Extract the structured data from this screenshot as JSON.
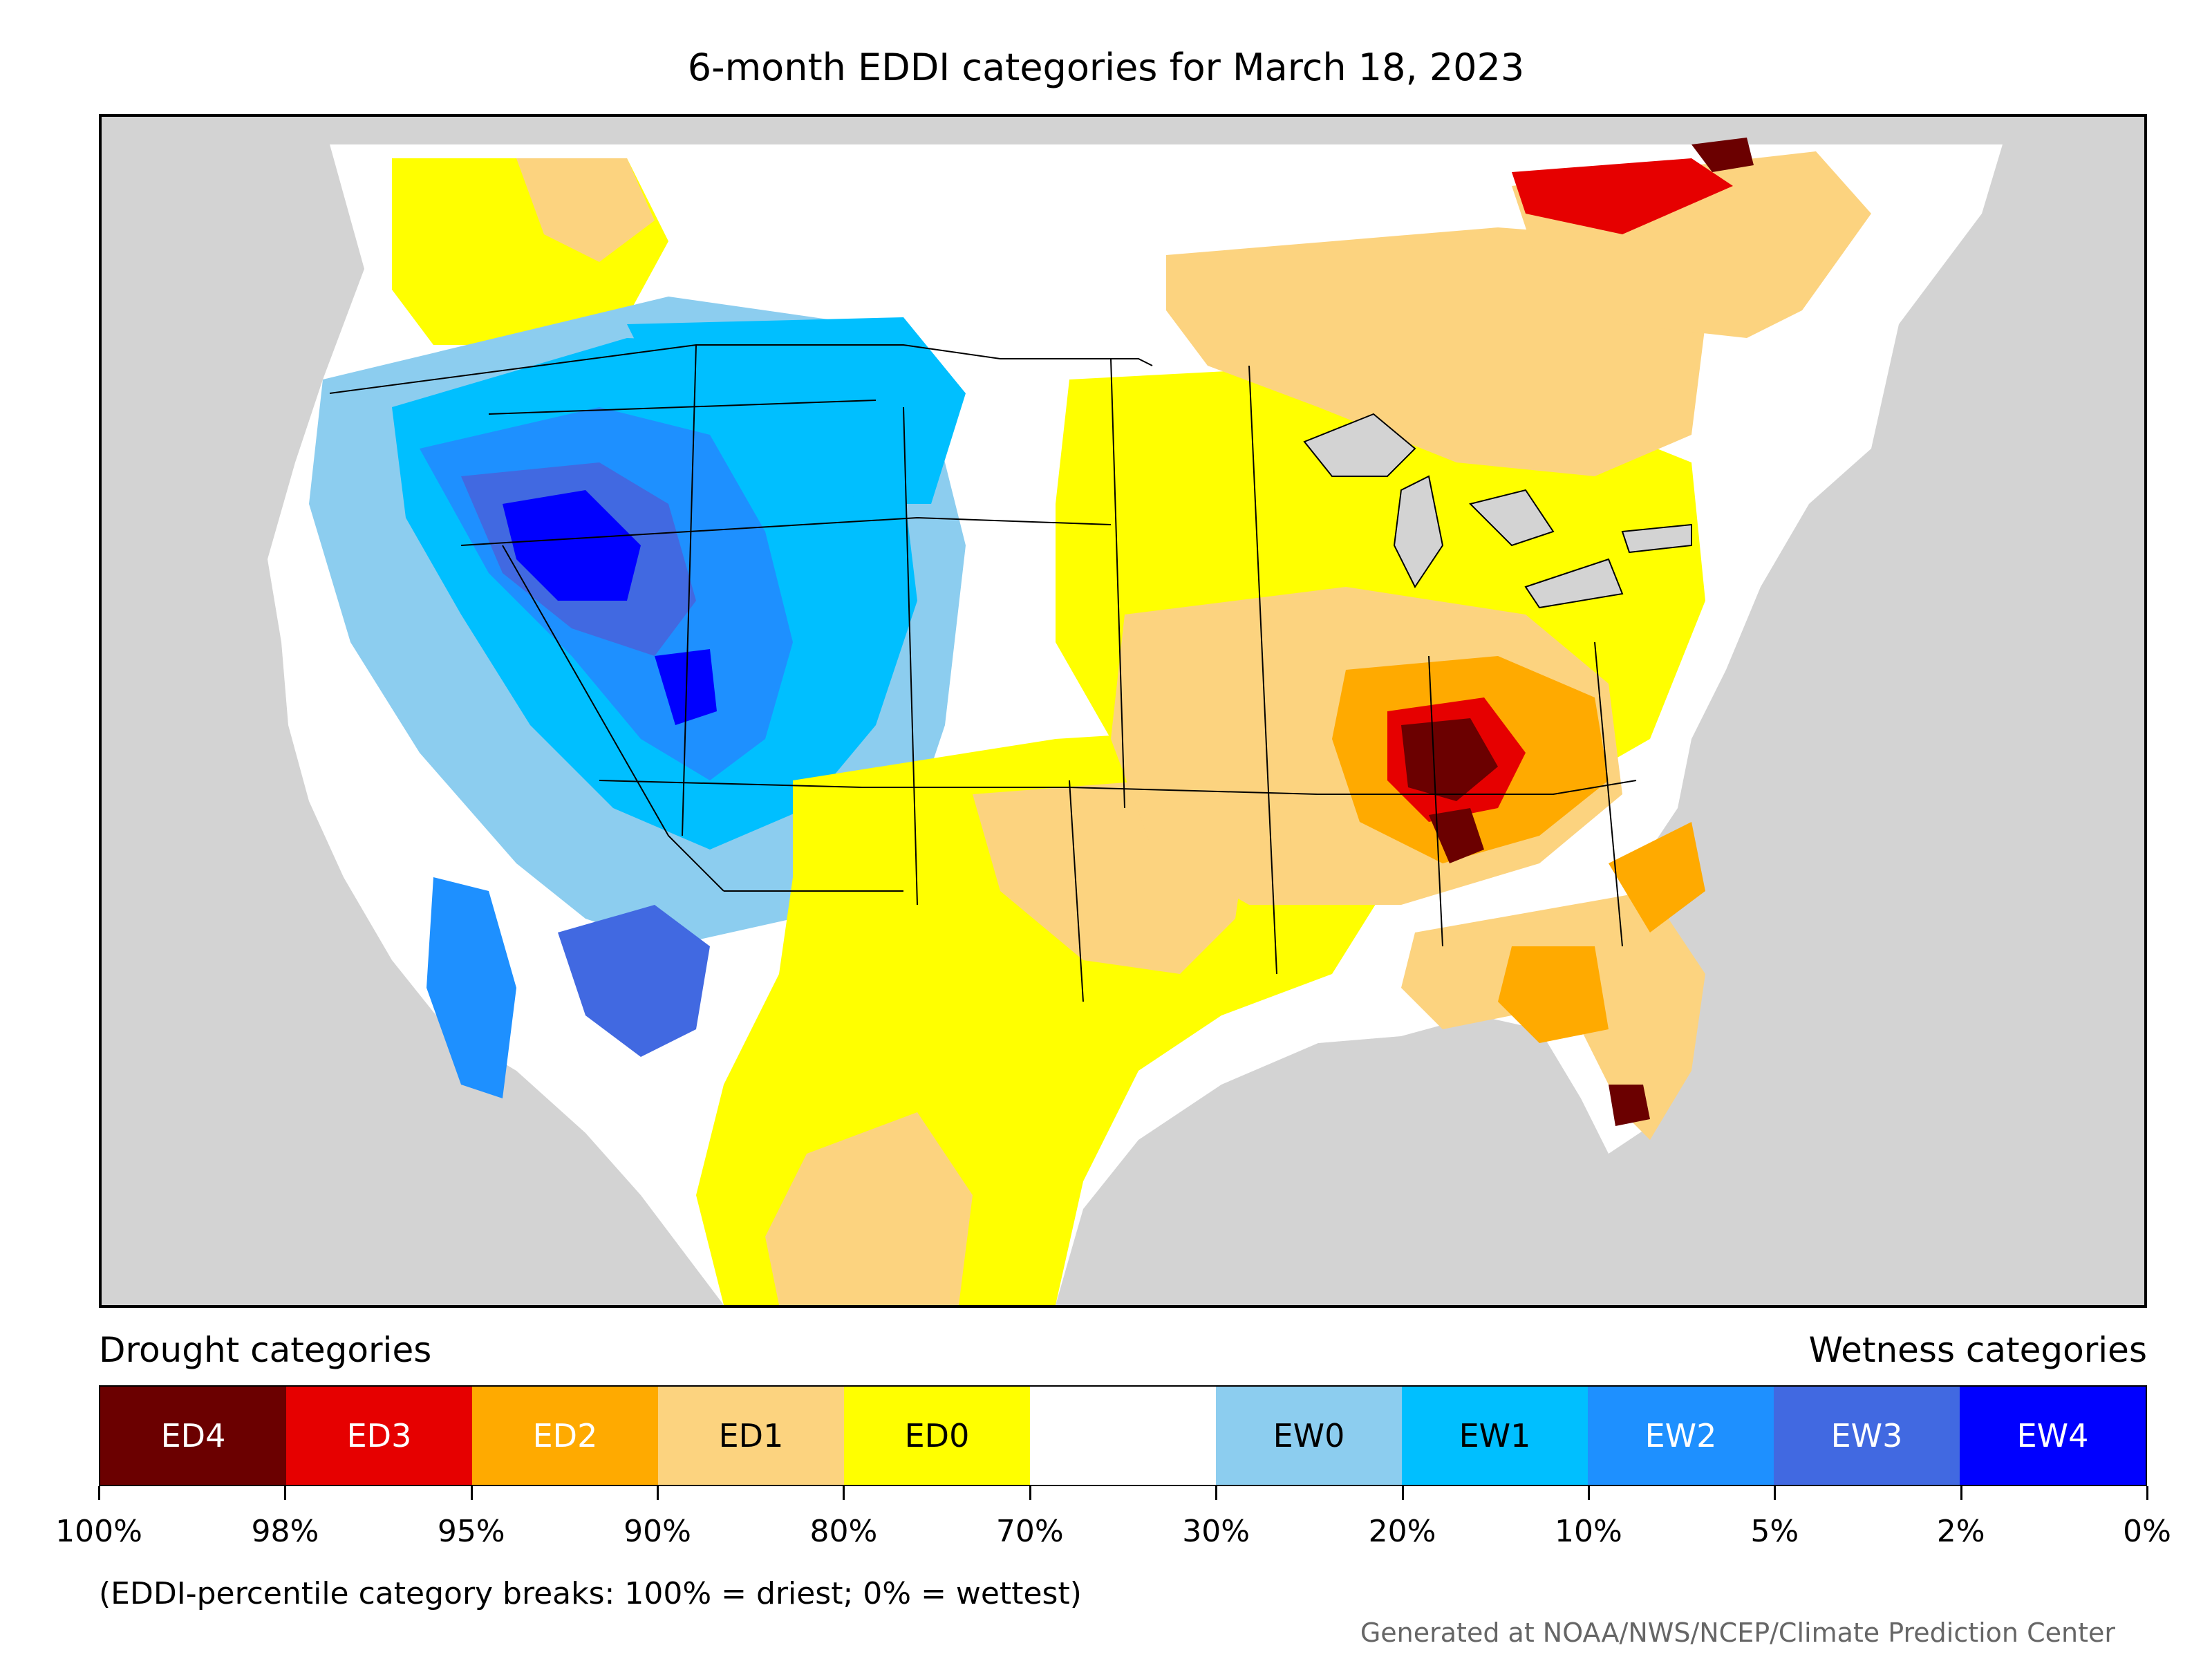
{
  "title": "6-month EDDI categories for March 18, 2023",
  "legend": {
    "drought_heading": "Drought categories",
    "wetness_heading": "Wetness categories",
    "categories": [
      {
        "label": "ED4",
        "color": "#6b0000",
        "text_color": "#ffffff"
      },
      {
        "label": "ED3",
        "color": "#e60000",
        "text_color": "#ffffff"
      },
      {
        "label": "ED2",
        "color": "#ffaa00",
        "text_color": "#ffffff"
      },
      {
        "label": "ED1",
        "color": "#fcd37f",
        "text_color": "#000000"
      },
      {
        "label": "ED0",
        "color": "#ffff00",
        "text_color": "#000000"
      },
      {
        "label": "",
        "color": "#ffffff",
        "text_color": "#000000"
      },
      {
        "label": "EW0",
        "color": "#8ccdef",
        "text_color": "#000000"
      },
      {
        "label": "EW1",
        "color": "#00bfff",
        "text_color": "#000000"
      },
      {
        "label": "EW2",
        "color": "#1e90ff",
        "text_color": "#ffffff"
      },
      {
        "label": "EW3",
        "color": "#4169e1",
        "text_color": "#ffffff"
      },
      {
        "label": "EW4",
        "color": "#0000ff",
        "text_color": "#ffffff"
      }
    ],
    "breaks": [
      "100%",
      "98%",
      "95%",
      "90%",
      "80%",
      "70%",
      "30%",
      "20%",
      "10%",
      "5%",
      "2%",
      "0%"
    ]
  },
  "note": "(EDDI-percentile category breaks: 100% = driest; 0% = wettest)",
  "credit": "Generated at NOAA/NWS/NCEP/Climate Prediction Center"
}
